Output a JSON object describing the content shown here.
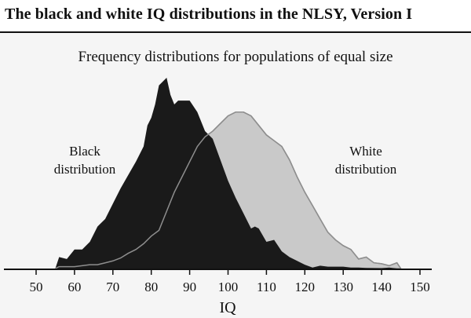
{
  "header": {
    "title": "The black and white IQ distributions in the NLSY, Version I"
  },
  "chart_data": {
    "type": "area",
    "title": "Frequency distributions for populations of equal size",
    "xlabel": "IQ",
    "ylabel": "",
    "xlim": [
      50,
      150
    ],
    "xticks": [
      50,
      60,
      70,
      80,
      90,
      100,
      110,
      120,
      130,
      140,
      150
    ],
    "y_axis_shown": false,
    "grid": false,
    "series": [
      {
        "name": "White distribution",
        "color": "#c9c9c9",
        "stroke": "#8e8e8e",
        "points": [
          [
            55,
            0
          ],
          [
            56,
            1
          ],
          [
            60,
            1
          ],
          [
            64,
            2
          ],
          [
            66,
            2
          ],
          [
            68,
            3
          ],
          [
            70,
            4
          ],
          [
            72,
            5.5
          ],
          [
            74,
            8
          ],
          [
            76,
            10
          ],
          [
            78,
            13
          ],
          [
            80,
            17
          ],
          [
            82,
            20
          ],
          [
            84,
            30
          ],
          [
            86,
            40
          ],
          [
            88,
            48
          ],
          [
            90,
            56
          ],
          [
            92,
            64
          ],
          [
            94,
            69
          ],
          [
            96,
            72
          ],
          [
            98,
            76
          ],
          [
            100,
            80
          ],
          [
            102,
            82
          ],
          [
            104,
            82
          ],
          [
            106,
            80
          ],
          [
            108,
            75
          ],
          [
            110,
            70
          ],
          [
            112,
            67
          ],
          [
            114,
            64
          ],
          [
            116,
            57
          ],
          [
            118,
            48
          ],
          [
            120,
            40
          ],
          [
            122,
            33
          ],
          [
            124,
            26
          ],
          [
            126,
            19
          ],
          [
            128,
            15
          ],
          [
            130,
            12
          ],
          [
            132,
            10
          ],
          [
            134,
            5
          ],
          [
            136,
            6
          ],
          [
            138,
            3
          ],
          [
            140,
            2.5
          ],
          [
            142,
            1.5
          ],
          [
            144,
            3
          ],
          [
            145,
            0
          ]
        ]
      },
      {
        "name": "Black distribution",
        "color": "#1a1a1a",
        "points": [
          [
            55,
            0
          ],
          [
            56,
            6
          ],
          [
            58,
            5
          ],
          [
            60,
            10
          ],
          [
            62,
            10
          ],
          [
            64,
            14
          ],
          [
            66,
            22
          ],
          [
            68,
            26
          ],
          [
            70,
            34
          ],
          [
            72,
            42
          ],
          [
            74,
            49
          ],
          [
            76,
            56
          ],
          [
            78,
            64
          ],
          [
            79,
            75
          ],
          [
            80,
            79
          ],
          [
            81,
            86
          ],
          [
            82,
            96
          ],
          [
            84,
            100
          ],
          [
            85,
            91
          ],
          [
            86,
            86
          ],
          [
            87,
            88
          ],
          [
            90,
            88
          ],
          [
            92,
            82
          ],
          [
            94,
            72
          ],
          [
            96,
            68
          ],
          [
            98,
            57
          ],
          [
            100,
            46
          ],
          [
            102,
            37
          ],
          [
            104,
            29
          ],
          [
            106,
            21
          ],
          [
            107,
            22
          ],
          [
            108,
            21
          ],
          [
            110,
            14
          ],
          [
            112,
            15
          ],
          [
            114,
            9
          ],
          [
            116,
            6
          ],
          [
            118,
            4
          ],
          [
            120,
            2
          ],
          [
            122,
            0.5
          ],
          [
            124,
            1.5
          ],
          [
            126,
            1
          ],
          [
            128,
            1
          ],
          [
            130,
            1
          ],
          [
            132,
            0.5
          ],
          [
            134,
            0.5
          ],
          [
            136,
            0.3
          ],
          [
            140,
            0.2
          ],
          [
            142,
            0.5
          ],
          [
            144,
            0
          ]
        ]
      }
    ]
  }
}
